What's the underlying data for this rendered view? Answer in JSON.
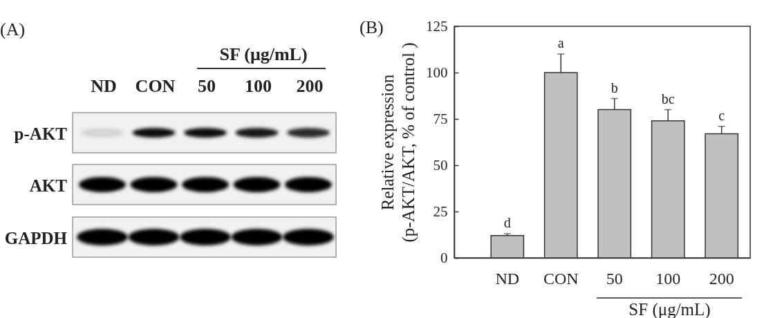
{
  "chart_data": [
    {
      "type": "other",
      "title": "(A)",
      "categories": [
        "ND",
        "CON",
        "50",
        "100",
        "200"
      ],
      "y_categories": [
        "p-AKT",
        "AKT",
        "GAPDH"
      ],
      "annotations": [
        "SF (μg/mL)"
      ]
    },
    {
      "type": "bar",
      "title": "(B)",
      "xlabel": "SF (μg/mL)",
      "ylabel": "Relative expression\n(p-AKT/AKT, % of control )",
      "categories": [
        "ND",
        "CON",
        "50",
        "100",
        "200"
      ],
      "values": [
        12,
        100,
        80,
        74,
        67
      ],
      "errors": [
        1,
        10,
        6,
        6,
        4
      ],
      "color": "#c0c0c0",
      "ylim": [
        0,
        125
      ],
      "yticks": [
        0,
        25,
        50,
        75,
        100,
        125
      ],
      "annotations": [
        {
          "text": "d",
          "x": "ND",
          "y": 13
        },
        {
          "text": "a",
          "x": "CON",
          "y": 110
        },
        {
          "text": "b",
          "x": "50",
          "y": 86
        },
        {
          "text": "bc",
          "x": "100",
          "y": 80
        },
        {
          "text": "c",
          "x": "200",
          "y": 71
        }
      ]
    }
  ]
}
